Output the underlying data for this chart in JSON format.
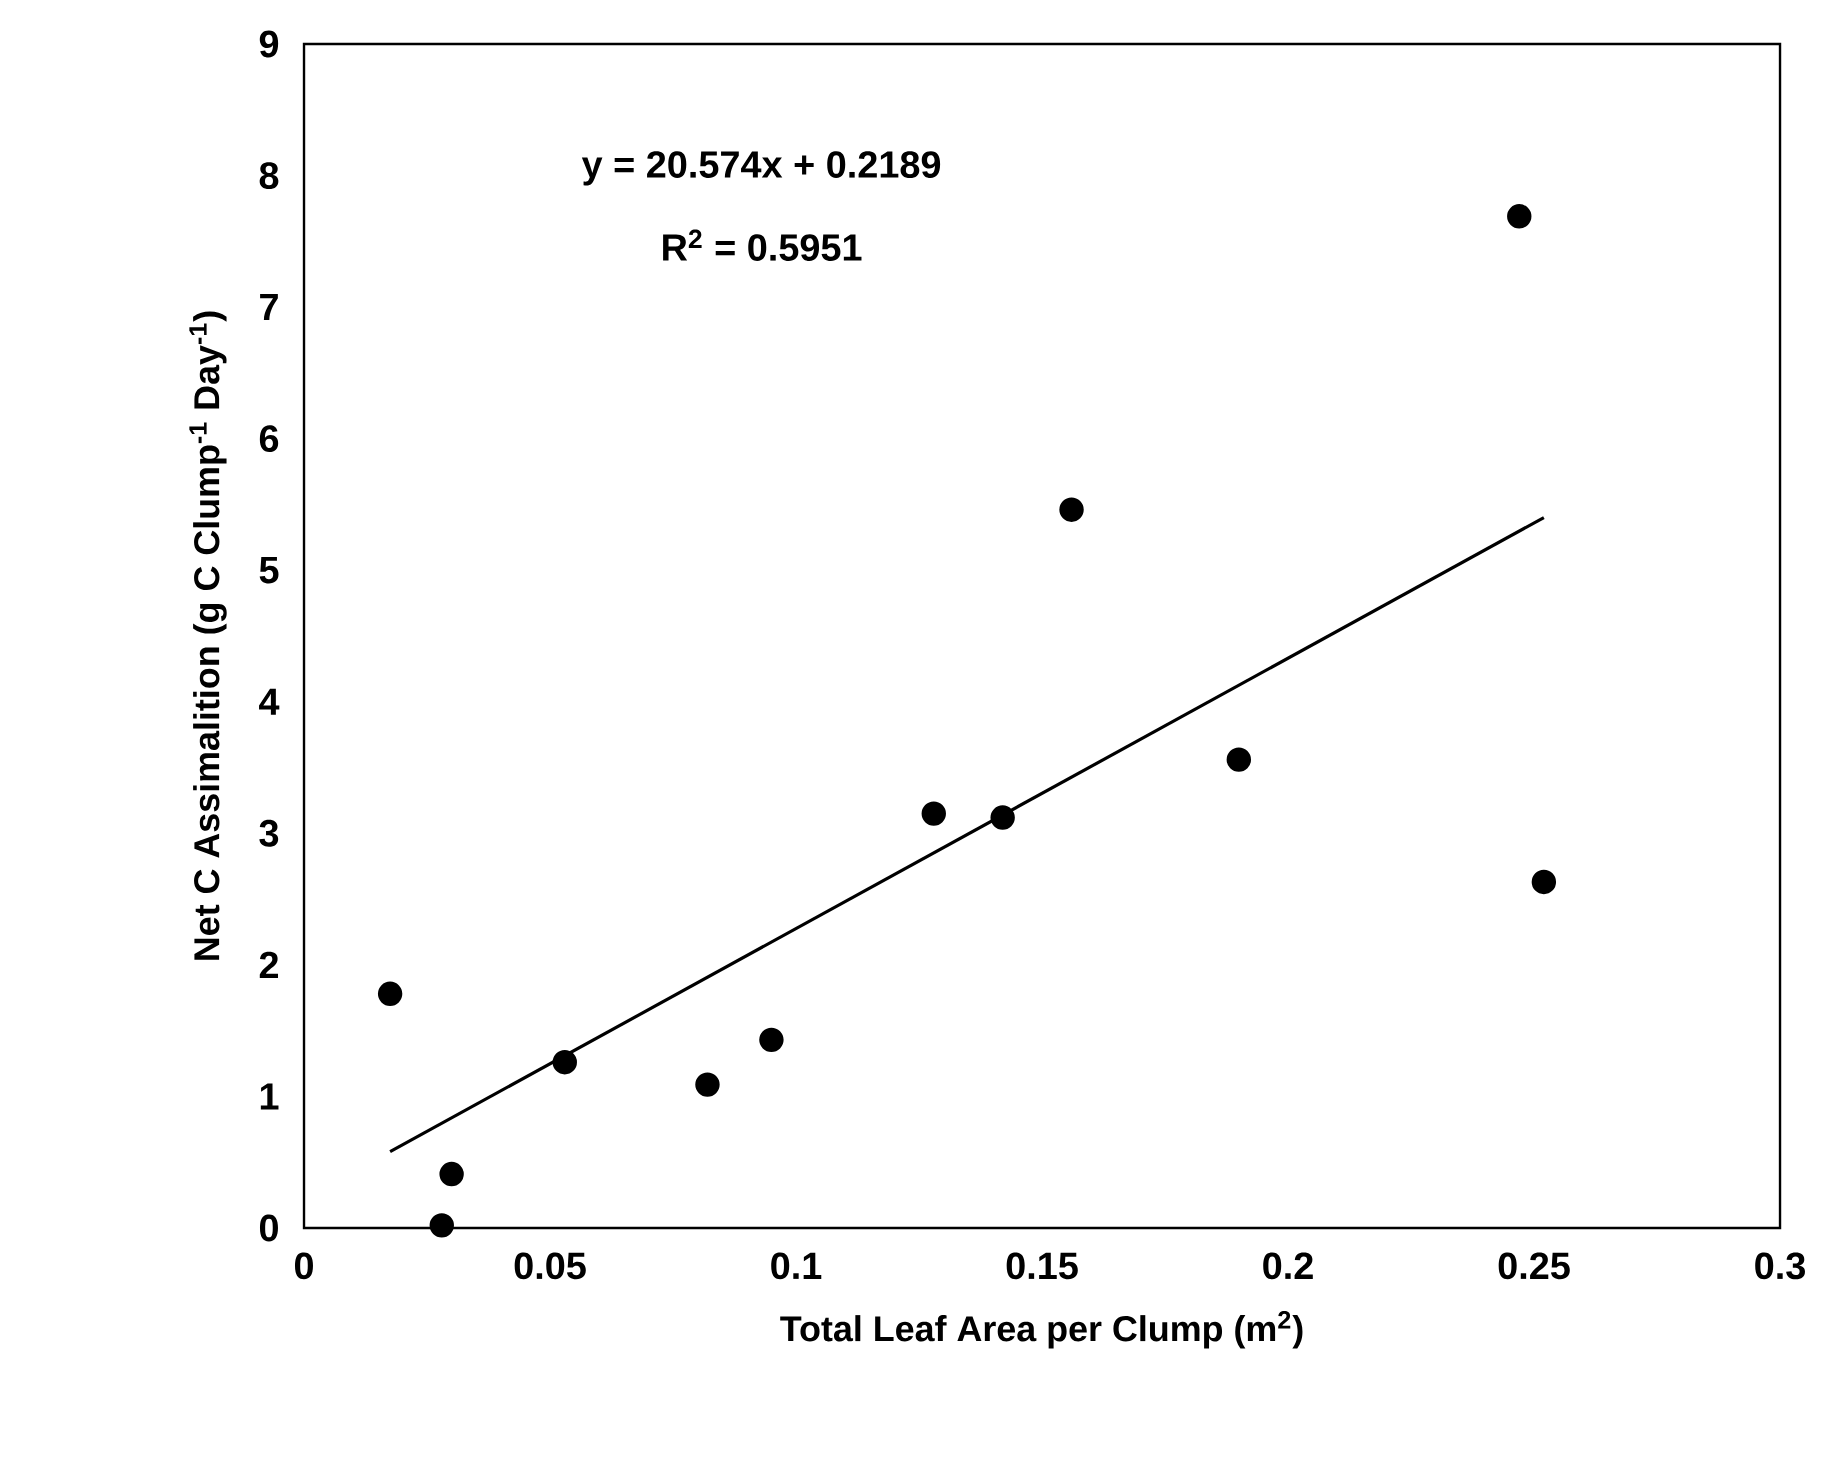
{
  "chart_data": {
    "type": "scatter",
    "xlabel": "Total Leaf Area per Clump (m$^{2}$)",
    "ylabel": "Net C Assimalition (g C Clump$^{-1}$ Day$^{-1}$)",
    "annotations": [
      "y = 20.574x + 0.2189",
      "R$^{2}$ = 0.5951"
    ],
    "xlim": [
      0,
      0.3
    ],
    "xticks": [
      0,
      0.05,
      0.1,
      0.15,
      0.2,
      0.25,
      0.3
    ],
    "ylim": [
      0,
      9
    ],
    "yticks": [
      0,
      1,
      2,
      3,
      4,
      5,
      6,
      7,
      8,
      9
    ],
    "grid": false,
    "series": [
      {
        "color": "#000000",
        "marker": "circle",
        "x": [
          0.0175,
          0.03,
          0.028,
          0.053,
          0.082,
          0.095,
          0.128,
          0.142,
          0.156,
          0.19,
          0.247,
          0.252
        ],
        "values": [
          1.78,
          0.41,
          0.02,
          1.26,
          1.09,
          1.43,
          3.15,
          3.12,
          5.46,
          3.56,
          7.69,
          2.63
        ]
      },
      {
        "type": "line",
        "color": "#000000",
        "marker": "none",
        "line_style": "solid",
        "x": [
          0.0175,
          0.252
        ],
        "values": [
          0.58,
          5.4
        ]
      }
    ]
  }
}
